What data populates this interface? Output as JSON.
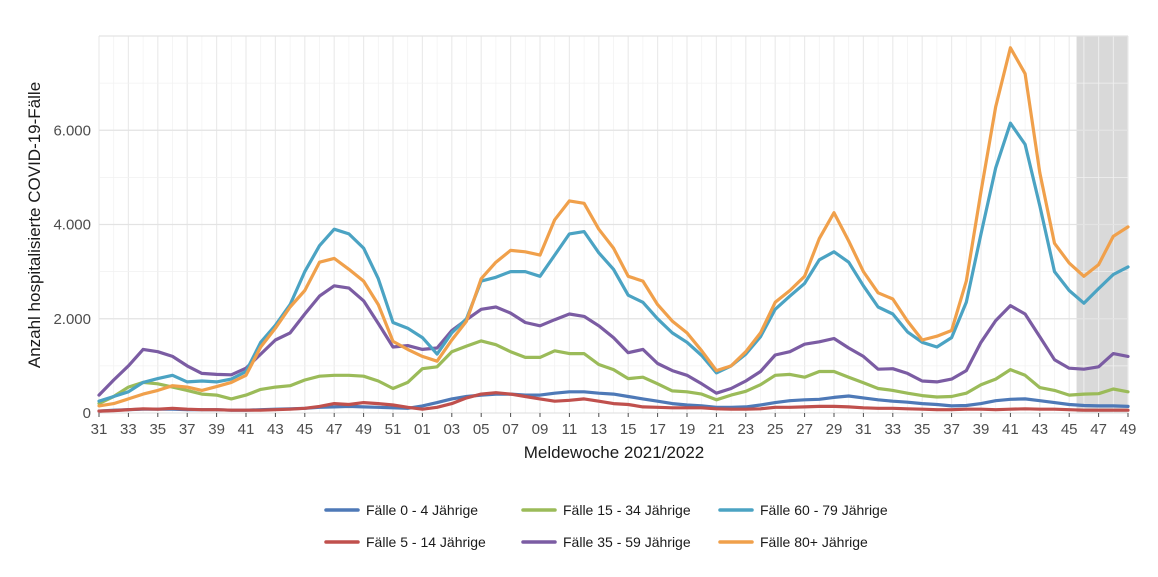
{
  "chart_data": {
    "type": "line",
    "title": "",
    "xlabel": "Meldewoche 2021/2022",
    "ylabel": "Anzahl hospitalisierte COVID-19-Fälle",
    "ylim": [
      0,
      8000
    ],
    "yticks": [
      0,
      2000,
      4000,
      6000
    ],
    "ytick_labels": [
      "0",
      "2.000",
      "4.000",
      "6.000"
    ],
    "grid": true,
    "legend_position": "bottom",
    "shaded_region": {
      "from_week_index": 67,
      "to_week_index": 71,
      "note": "shaded grey area at end"
    },
    "x_tick_labels": [
      "31",
      "33",
      "35",
      "37",
      "39",
      "41",
      "43",
      "45",
      "47",
      "49",
      "51",
      "01",
      "03",
      "05",
      "07",
      "09",
      "11",
      "13",
      "15",
      "17",
      "19",
      "21",
      "23",
      "25",
      "27",
      "29",
      "31",
      "33",
      "35",
      "37",
      "39",
      "41",
      "43",
      "45",
      "47",
      "49"
    ],
    "x": [
      "31",
      "32",
      "33",
      "34",
      "35",
      "36",
      "37",
      "38",
      "39",
      "40",
      "41",
      "42",
      "43",
      "44",
      "45",
      "46",
      "47",
      "48",
      "49",
      "50",
      "51",
      "52",
      "01",
      "02",
      "03",
      "04",
      "05",
      "06",
      "07",
      "08",
      "09",
      "10",
      "11",
      "12",
      "13",
      "14",
      "15",
      "16",
      "17",
      "18",
      "19",
      "20",
      "21",
      "22",
      "23",
      "24",
      "25",
      "26",
      "27",
      "28",
      "29",
      "30",
      "31",
      "32",
      "33",
      "34",
      "35",
      "36",
      "37",
      "38",
      "39",
      "40",
      "41",
      "42",
      "43",
      "44",
      "45",
      "46",
      "47",
      "48",
      "49"
    ],
    "series": [
      {
        "name": "Fälle 0 - 4 Jährige",
        "color": "#4e79b7",
        "values": [
          40,
          60,
          70,
          80,
          80,
          80,
          70,
          70,
          70,
          60,
          60,
          70,
          80,
          90,
          100,
          120,
          130,
          140,
          130,
          120,
          110,
          100,
          150,
          220,
          300,
          350,
          380,
          400,
          400,
          380,
          380,
          420,
          450,
          450,
          420,
          400,
          350,
          300,
          250,
          200,
          170,
          150,
          120,
          120,
          130,
          170,
          220,
          260,
          280,
          290,
          330,
          360,
          320,
          280,
          250,
          230,
          200,
          180,
          150,
          160,
          200,
          260,
          290,
          300,
          260,
          220,
          180,
          160,
          150,
          150,
          140
        ]
      },
      {
        "name": "Fälle 5 - 14 Jährige",
        "color": "#c0504d",
        "values": [
          40,
          50,
          70,
          90,
          80,
          100,
          80,
          70,
          70,
          60,
          60,
          60,
          70,
          80,
          100,
          140,
          200,
          180,
          220,
          200,
          170,
          120,
          80,
          120,
          200,
          320,
          400,
          430,
          400,
          350,
          300,
          250,
          270,
          300,
          250,
          200,
          180,
          130,
          120,
          110,
          110,
          110,
          90,
          80,
          80,
          90,
          120,
          120,
          130,
          140,
          140,
          130,
          110,
          100,
          100,
          90,
          80,
          70,
          70,
          80,
          80,
          70,
          80,
          90,
          80,
          80,
          70,
          60,
          60,
          60,
          60
        ]
      },
      {
        "name": "Fälle 15 - 34 Jährige",
        "color": "#9bbb59",
        "values": [
          200,
          350,
          550,
          650,
          620,
          550,
          480,
          400,
          380,
          300,
          380,
          500,
          550,
          580,
          700,
          780,
          800,
          800,
          780,
          680,
          520,
          650,
          940,
          980,
          1300,
          1420,
          1530,
          1450,
          1300,
          1180,
          1180,
          1320,
          1260,
          1260,
          1030,
          920,
          730,
          760,
          620,
          470,
          450,
          400,
          280,
          380,
          460,
          600,
          800,
          820,
          760,
          880,
          880,
          760,
          640,
          520,
          480,
          420,
          370,
          340,
          350,
          420,
          600,
          720,
          920,
          800,
          540,
          480,
          380,
          400,
          410,
          510,
          450
        ]
      },
      {
        "name": "Fälle 35 - 59 Jährige",
        "color": "#7b5ca3",
        "values": [
          380,
          700,
          1000,
          1350,
          1300,
          1200,
          1000,
          840,
          820,
          810,
          950,
          1250,
          1550,
          1700,
          2100,
          2480,
          2700,
          2650,
          2380,
          1900,
          1400,
          1430,
          1350,
          1380,
          1750,
          1980,
          2200,
          2250,
          2120,
          1920,
          1850,
          1980,
          2100,
          2050,
          1850,
          1600,
          1280,
          1350,
          1050,
          900,
          800,
          620,
          420,
          520,
          680,
          880,
          1230,
          1300,
          1460,
          1510,
          1580,
          1380,
          1200,
          930,
          940,
          840,
          680,
          660,
          720,
          900,
          1500,
          1960,
          2280,
          2100,
          1620,
          1130,
          950,
          930,
          980,
          1260,
          1200
        ]
      },
      {
        "name": "Fälle 60 - 79 Jährige",
        "color": "#4ba3c3",
        "values": [
          250,
          350,
          450,
          650,
          730,
          800,
          660,
          680,
          660,
          720,
          880,
          1500,
          1860,
          2300,
          3000,
          3550,
          3900,
          3800,
          3500,
          2850,
          1920,
          1800,
          1600,
          1250,
          1700,
          2000,
          2800,
          2880,
          3000,
          3000,
          2900,
          3350,
          3800,
          3850,
          3400,
          3050,
          2500,
          2350,
          2000,
          1700,
          1500,
          1220,
          850,
          1000,
          1250,
          1620,
          2200,
          2480,
          2750,
          3250,
          3420,
          3200,
          2700,
          2250,
          2100,
          1720,
          1500,
          1400,
          1600,
          2350,
          3800,
          5200,
          6150,
          5700,
          4400,
          3000,
          2600,
          2330,
          2640,
          2940,
          3100
        ]
      },
      {
        "name": "Fälle 80+ Jährige",
        "color": "#f0a04b",
        "values": [
          150,
          200,
          300,
          400,
          480,
          580,
          550,
          480,
          560,
          650,
          800,
          1400,
          1800,
          2250,
          2600,
          3200,
          3280,
          3050,
          2800,
          2300,
          1520,
          1350,
          1200,
          1100,
          1550,
          1950,
          2850,
          3200,
          3450,
          3420,
          3350,
          4100,
          4500,
          4450,
          3900,
          3500,
          2900,
          2800,
          2300,
          1950,
          1700,
          1320,
          900,
          1000,
          1300,
          1700,
          2350,
          2600,
          2900,
          3700,
          4250,
          3650,
          3000,
          2550,
          2420,
          1950,
          1550,
          1630,
          1750,
          2800,
          4700,
          6500,
          7750,
          7200,
          5100,
          3600,
          3180,
          2900,
          3150,
          3750,
          3950
        ]
      }
    ]
  }
}
